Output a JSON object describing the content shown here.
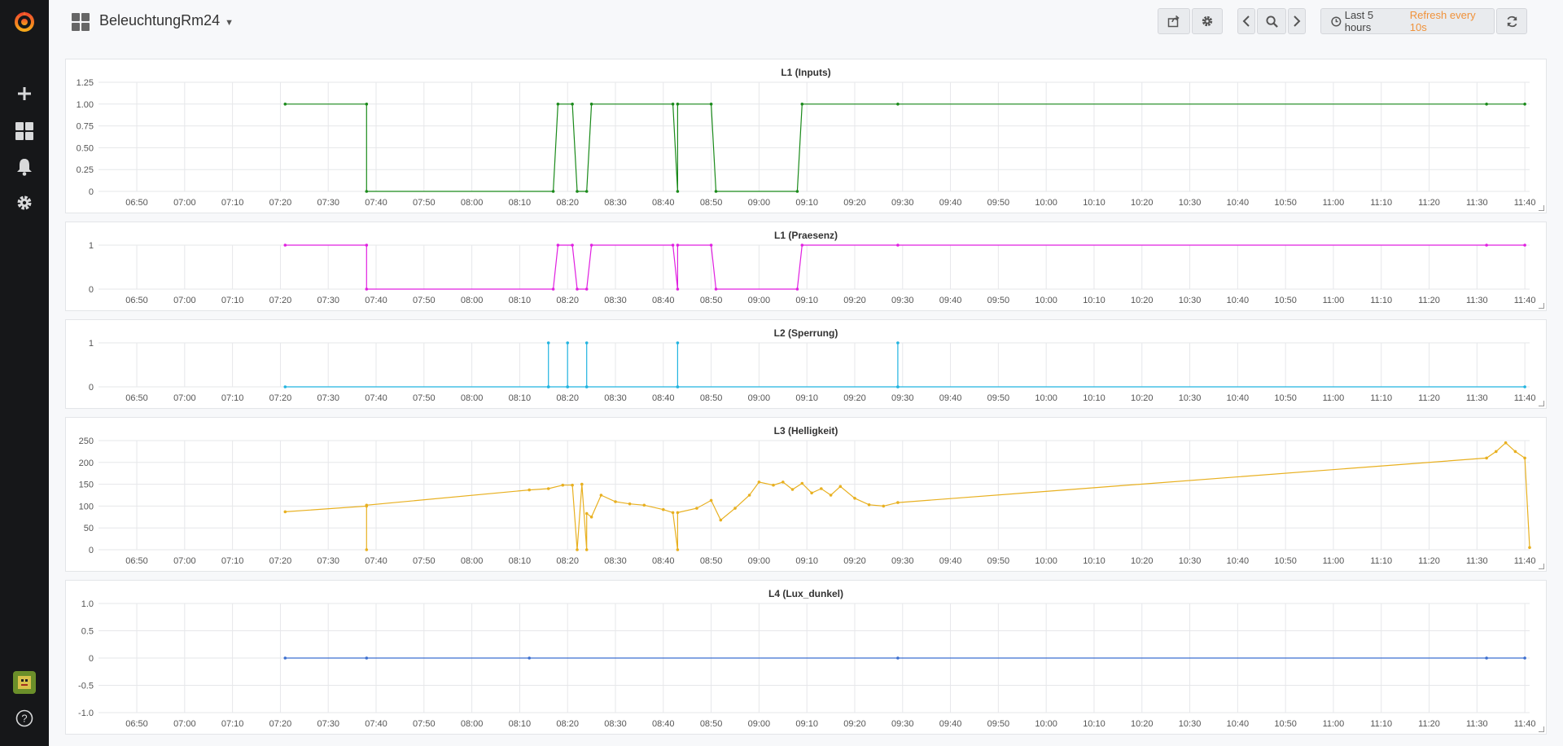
{
  "app": {
    "dashboard_title": "BeleuchtungRm24"
  },
  "toolbar": {
    "time_range": "Last 5 hours",
    "refresh": "Refresh every 10s"
  },
  "colors": {
    "green": "#1a8a1a",
    "magenta": "#e020e0",
    "cyan": "#22b4e0",
    "orange": "#e8b020",
    "blue": "#3c6fd0"
  },
  "x_ticks": [
    "06:50",
    "07:00",
    "07:10",
    "07:20",
    "07:30",
    "07:40",
    "07:50",
    "08:00",
    "08:10",
    "08:20",
    "08:30",
    "08:40",
    "08:50",
    "09:00",
    "09:10",
    "09:20",
    "09:30",
    "09:40",
    "09:50",
    "10:00",
    "10:10",
    "10:20",
    "10:30",
    "10:40",
    "10:50",
    "11:00",
    "11:10",
    "11:20",
    "11:30",
    "11:40"
  ],
  "panels": [
    {
      "title": "L1 (Inputs)",
      "chart_data": {
        "type": "line",
        "y_ticks": [
          "1.25",
          "1.00",
          "0.75",
          "0.50",
          "0.25",
          "0"
        ],
        "ylim": [
          0,
          1.25
        ],
        "color": "#1a8a1a",
        "series": [
          {
            "points": [
              [
                "07:21",
                1
              ],
              [
                "07:38",
                1
              ],
              [
                "07:38",
                0
              ],
              [
                "08:17",
                0
              ],
              [
                "08:18",
                1
              ],
              [
                "08:21",
                1
              ],
              [
                "08:22",
                0
              ],
              [
                "08:24",
                0
              ],
              [
                "08:25",
                1
              ],
              [
                "08:42",
                1
              ],
              [
                "08:43",
                0
              ],
              [
                "08:43",
                1
              ],
              [
                "08:50",
                1
              ],
              [
                "08:51",
                0
              ],
              [
                "09:08",
                0
              ],
              [
                "09:09",
                1
              ],
              [
                "09:29",
                1
              ],
              [
                "11:32",
                1
              ],
              [
                "11:40",
                1
              ]
            ]
          }
        ]
      }
    },
    {
      "title": "L1 (Praesenz)",
      "chart_data": {
        "type": "line",
        "y_ticks": [
          "1",
          "0"
        ],
        "ylim": [
          0,
          1
        ],
        "color": "#e020e0",
        "series": [
          {
            "points": [
              [
                "07:21",
                1
              ],
              [
                "07:38",
                1
              ],
              [
                "07:38",
                0
              ],
              [
                "08:17",
                0
              ],
              [
                "08:18",
                1
              ],
              [
                "08:21",
                1
              ],
              [
                "08:22",
                0
              ],
              [
                "08:24",
                0
              ],
              [
                "08:25",
                1
              ],
              [
                "08:42",
                1
              ],
              [
                "08:43",
                0
              ],
              [
                "08:43",
                1
              ],
              [
                "08:50",
                1
              ],
              [
                "08:51",
                0
              ],
              [
                "09:08",
                0
              ],
              [
                "09:09",
                1
              ],
              [
                "09:29",
                1
              ],
              [
                "11:32",
                1
              ],
              [
                "11:40",
                1
              ]
            ]
          }
        ]
      }
    },
    {
      "title": "L2 (Sperrung)",
      "chart_data": {
        "type": "line",
        "y_ticks": [
          "1",
          "0"
        ],
        "ylim": [
          0,
          1
        ],
        "color": "#22b4e0",
        "series": [
          {
            "points": [
              [
                "07:21",
                0
              ],
              [
                "08:16",
                0
              ],
              [
                "08:16",
                1
              ],
              [
                "08:16",
                0
              ],
              [
                "08:20",
                0
              ],
              [
                "08:20",
                1
              ],
              [
                "08:20",
                0
              ],
              [
                "08:24",
                0
              ],
              [
                "08:24",
                1
              ],
              [
                "08:24",
                0
              ],
              [
                "08:43",
                0
              ],
              [
                "08:43",
                1
              ],
              [
                "08:43",
                0
              ],
              [
                "09:29",
                0
              ],
              [
                "09:29",
                1
              ],
              [
                "09:29",
                0
              ],
              [
                "11:40",
                0
              ]
            ]
          }
        ]
      }
    },
    {
      "title": "L3 (Helligkeit)",
      "chart_data": {
        "type": "line",
        "y_ticks": [
          "250",
          "200",
          "150",
          "100",
          "50",
          "0"
        ],
        "ylim": [
          0,
          250
        ],
        "color": "#e8b020",
        "series": [
          {
            "points": [
              [
                "07:21",
                87
              ],
              [
                "07:38",
                100
              ],
              [
                "07:38",
                0
              ],
              [
                "07:38",
                102
              ],
              [
                "08:12",
                137
              ],
              [
                "08:16",
                140
              ],
              [
                "08:19",
                148
              ],
              [
                "08:21",
                148
              ],
              [
                "08:22",
                0
              ],
              [
                "08:23",
                150
              ],
              [
                "08:24",
                0
              ],
              [
                "08:24",
                83
              ],
              [
                "08:25",
                75
              ],
              [
                "08:27",
                125
              ],
              [
                "08:30",
                110
              ],
              [
                "08:33",
                105
              ],
              [
                "08:36",
                102
              ],
              [
                "08:40",
                92
              ],
              [
                "08:42",
                85
              ],
              [
                "08:43",
                0
              ],
              [
                "08:43",
                85
              ],
              [
                "08:47",
                95
              ],
              [
                "08:50",
                113
              ],
              [
                "08:52",
                68
              ],
              [
                "08:55",
                95
              ],
              [
                "08:58",
                125
              ],
              [
                "09:00",
                155
              ],
              [
                "09:03",
                148
              ],
              [
                "09:05",
                155
              ],
              [
                "09:07",
                138
              ],
              [
                "09:09",
                152
              ],
              [
                "09:11",
                130
              ],
              [
                "09:13",
                140
              ],
              [
                "09:15",
                125
              ],
              [
                "09:17",
                145
              ],
              [
                "09:20",
                118
              ],
              [
                "09:23",
                103
              ],
              [
                "09:26",
                100
              ],
              [
                "09:29",
                108
              ],
              [
                "11:32",
                210
              ],
              [
                "11:34",
                225
              ],
              [
                "11:36",
                245
              ],
              [
                "11:38",
                225
              ],
              [
                "11:40",
                210
              ],
              [
                "11:41",
                5
              ]
            ]
          }
        ]
      }
    },
    {
      "title": "L4 (Lux_dunkel)",
      "chart_data": {
        "type": "line",
        "y_ticks": [
          "1.0",
          "0.5",
          "0",
          "-0.5",
          "-1.0"
        ],
        "ylim": [
          -1,
          1
        ],
        "color": "#3c6fd0",
        "series": [
          {
            "points": [
              [
                "07:21",
                0
              ],
              [
                "07:38",
                0
              ],
              [
                "08:12",
                0
              ],
              [
                "09:29",
                0
              ],
              [
                "11:32",
                0
              ],
              [
                "11:40",
                0
              ]
            ]
          }
        ]
      }
    }
  ]
}
